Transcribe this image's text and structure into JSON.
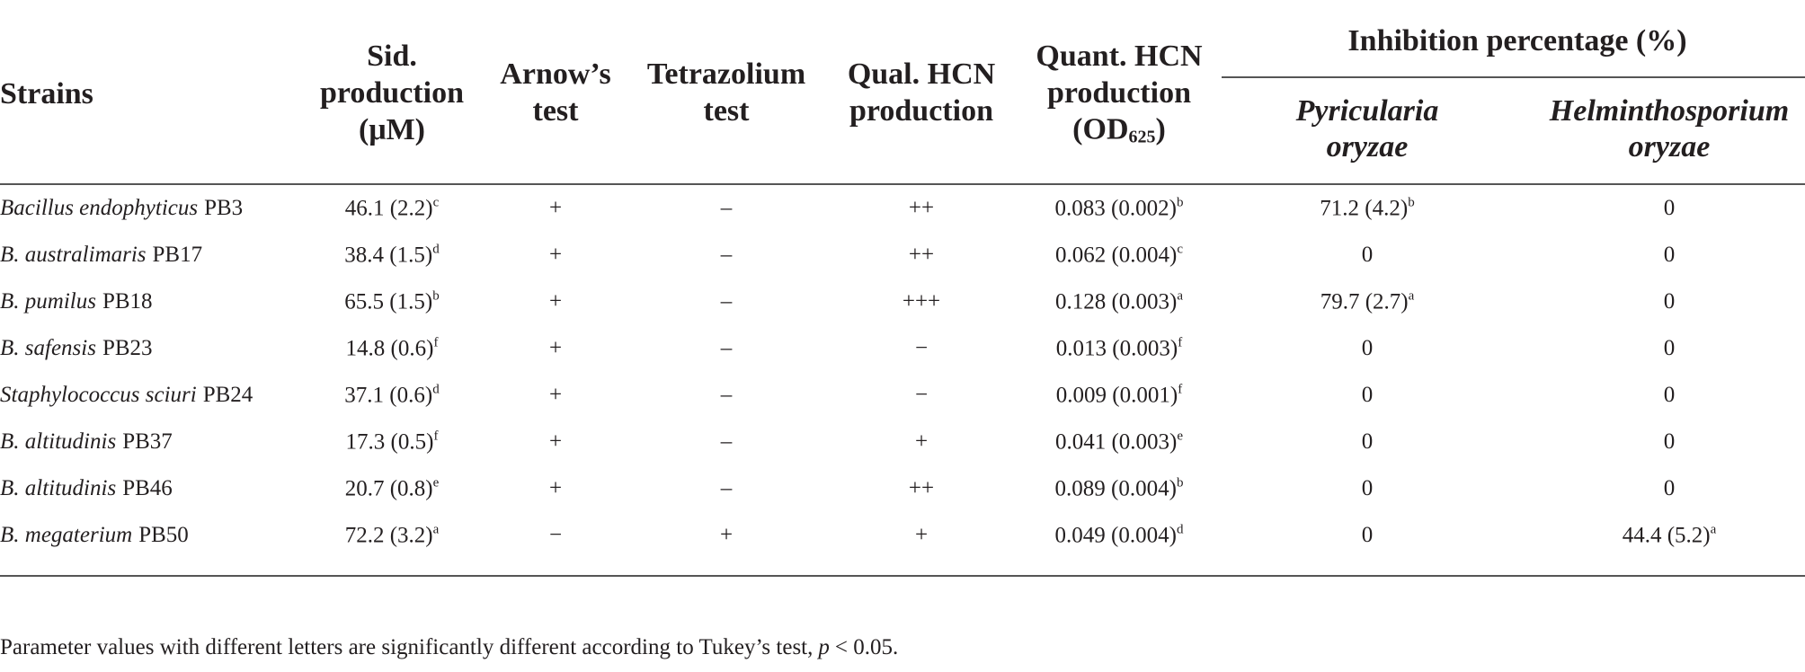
{
  "table": {
    "headers": [
      {
        "lines": [
          "Strains"
        ]
      },
      {
        "lines": [
          "Sid.",
          "production",
          "(μM)"
        ]
      },
      {
        "lines": [
          "Arnow’s",
          "test"
        ]
      },
      {
        "lines": [
          "Tetrazolium",
          "test"
        ]
      },
      {
        "lines": [
          "Qual. HCN",
          "production"
        ]
      },
      {
        "lines": [
          "Quant. HCN",
          "production"
        ],
        "unit_open": "(OD",
        "unit_sub": "625",
        "unit_close": ")"
      }
    ],
    "group_header": {
      "title": "Inhibition percentage (%)",
      "subheaders": [
        {
          "lines": [
            "Pyricularia",
            "oryzae"
          ]
        },
        {
          "lines": [
            "Helminthosporium",
            "oryzae"
          ]
        }
      ]
    },
    "rows": [
      [
        {
          "italic": "Bacillus endophyticus",
          "text": "PB3"
        },
        {
          "text": "46.1 (2.2)",
          "sup": "c"
        },
        "+",
        "–",
        "++",
        {
          "text": "0.083 (0.002)",
          "sup": "b"
        },
        {
          "text": "71.2 (4.2)",
          "sup": "b"
        },
        "0"
      ],
      [
        {
          "italic": "B. australimaris",
          "text": "PB17"
        },
        {
          "text": "38.4 (1.5)",
          "sup": "d"
        },
        "+",
        "–",
        "++",
        {
          "text": "0.062 (0.004)",
          "sup": "c"
        },
        "0",
        "0"
      ],
      [
        {
          "italic": "B. pumilus",
          "text": "PB18"
        },
        {
          "text": "65.5 (1.5)",
          "sup": "b"
        },
        "+",
        "–",
        "+++",
        {
          "text": "0.128 (0.003)",
          "sup": "a"
        },
        {
          "text": "79.7 (2.7)",
          "sup": "a"
        },
        "0"
      ],
      [
        {
          "italic": "B. safensis",
          "text": "PB23"
        },
        {
          "text": "14.8 (0.6)",
          "sup": "f"
        },
        "+",
        "–",
        "−",
        {
          "text": "0.013 (0.003)",
          "sup": "f"
        },
        "0",
        "0"
      ],
      [
        {
          "italic": "Staphylococcus sciuri",
          "text": "PB24"
        },
        {
          "text": "37.1 (0.6)",
          "sup": "d"
        },
        "+",
        "–",
        "−",
        {
          "text": "0.009 (0.001)",
          "sup": "f"
        },
        "0",
        "0"
      ],
      [
        {
          "italic": "B. altitudinis",
          "text": "PB37"
        },
        {
          "text": "17.3 (0.5)",
          "sup": "f"
        },
        "+",
        "–",
        "+",
        {
          "text": "0.041 (0.003)",
          "sup": "e"
        },
        "0",
        "0"
      ],
      [
        {
          "italic": "B. altitudinis",
          "text": "PB46"
        },
        {
          "text": "20.7 (0.8)",
          "sup": "e"
        },
        "+",
        "–",
        "++",
        {
          "text": "0.089 (0.004)",
          "sup": "b"
        },
        "0",
        "0"
      ],
      [
        {
          "italic": "B. megaterium",
          "text": "PB50"
        },
        {
          "text": "72.2 (3.2)",
          "sup": "a"
        },
        "−",
        "+",
        "+",
        {
          "text": "0.049 (0.004)",
          "sup": "d"
        },
        "0",
        {
          "text": "44.4 (5.2)",
          "sup": "a"
        }
      ]
    ]
  },
  "footnote": {
    "before": "Parameter values with different letters are significantly different according to Tukey’s test,",
    "italic": "p",
    "after": "< 0.05."
  }
}
